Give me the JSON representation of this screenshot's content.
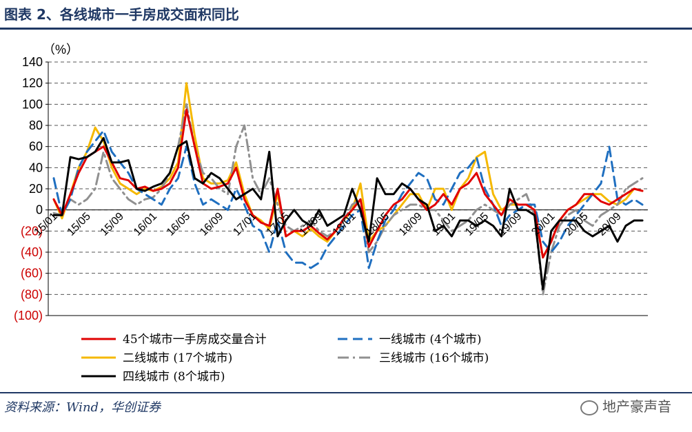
{
  "figure": {
    "title": "图表 2、各线城市一手房成交面积同比",
    "source": "资料来源：Wind，华创证券",
    "watermark": "地产豪声音"
  },
  "chart_data": {
    "type": "line",
    "title": "图表 2、各线城市一手房成交面积同比",
    "ylabel": "（%）",
    "xlabel": "",
    "ylim": [
      -100,
      140
    ],
    "yticks": [
      140,
      120,
      100,
      80,
      60,
      40,
      20,
      0,
      -20,
      -40,
      -60,
      -80,
      -100
    ],
    "ytick_labels": [
      "140",
      "120",
      "100",
      "80",
      "60",
      "40",
      "20",
      "0",
      "(20)",
      "(40)",
      "(60)",
      "(80)",
      "(100)"
    ],
    "negative_label_color": "#cc0000",
    "grid": true,
    "x_ticks": [
      "15/01",
      "15/05",
      "15/09",
      "16/01",
      "16/05",
      "16/09",
      "17/01",
      "17/05",
      "17/09",
      "18/01",
      "18/05",
      "18/09",
      "19/01",
      "19/05",
      "19/09",
      "20/01",
      "20/05",
      "20/09"
    ],
    "x_tick_index": [
      0,
      4,
      8,
      12,
      16,
      20,
      24,
      28,
      32,
      36,
      40,
      44,
      48,
      52,
      56,
      60,
      64,
      68
    ],
    "x_count": 72,
    "legend_position": "bottom",
    "series": [
      {
        "name": "45个城市一手房成交量合计",
        "color": "#e00000",
        "dash": "",
        "width": 3,
        "values": [
          10,
          -5,
          15,
          35,
          50,
          55,
          60,
          45,
          30,
          28,
          20,
          22,
          18,
          20,
          25,
          40,
          95,
          60,
          25,
          20,
          22,
          25,
          40,
          10,
          -5,
          -12,
          -15,
          20,
          -25,
          -20,
          -20,
          -15,
          -22,
          -28,
          -20,
          -8,
          0,
          10,
          -35,
          -20,
          -5,
          5,
          10,
          20,
          10,
          0,
          5,
          15,
          5,
          20,
          25,
          35,
          15,
          5,
          -5,
          10,
          5,
          5,
          0,
          -45,
          -30,
          -10,
          0,
          5,
          15,
          15,
          8,
          5,
          10,
          15,
          20,
          18
        ]
      },
      {
        "name": "一线城市 (4个城市)",
        "color": "#1f6fc0",
        "dash": "14,8",
        "width": 3,
        "values": [
          30,
          -5,
          10,
          40,
          55,
          65,
          75,
          55,
          45,
          35,
          20,
          15,
          10,
          5,
          20,
          30,
          60,
          25,
          5,
          10,
          5,
          0,
          20,
          5,
          -15,
          -20,
          -40,
          -10,
          -40,
          -50,
          -50,
          -55,
          -50,
          -35,
          -25,
          -15,
          -5,
          0,
          -55,
          -30,
          -10,
          0,
          15,
          25,
          35,
          30,
          10,
          5,
          20,
          35,
          40,
          50,
          20,
          5,
          -15,
          -5,
          0,
          5,
          5,
          -30,
          -40,
          -30,
          -15,
          -5,
          5,
          15,
          25,
          60,
          10,
          5,
          10,
          5
        ]
      },
      {
        "name": "二线城市 (17个城市)",
        "color": "#f5b800",
        "dash": "",
        "width": 3,
        "values": [
          10,
          -8,
          15,
          40,
          55,
          78,
          65,
          40,
          25,
          20,
          15,
          20,
          18,
          22,
          30,
          45,
          120,
          70,
          30,
          25,
          25,
          28,
          45,
          15,
          -5,
          -10,
          -18,
          15,
          -25,
          -20,
          -25,
          -18,
          -25,
          -30,
          -20,
          -10,
          0,
          25,
          -30,
          -20,
          -15,
          -5,
          5,
          15,
          15,
          0,
          20,
          20,
          0,
          20,
          30,
          50,
          55,
          15,
          0,
          5,
          5,
          5,
          0,
          -45,
          -30,
          -10,
          0,
          5,
          10,
          15,
          15,
          8,
          5,
          10,
          20,
          18
        ]
      },
      {
        "name": "三线城市 (16个城市)",
        "color": "#909090",
        "dash": "16,6,3,6",
        "width": 3,
        "values": [
          -3,
          -5,
          10,
          5,
          10,
          20,
          55,
          30,
          20,
          10,
          5,
          10,
          12,
          20,
          35,
          60,
          100,
          60,
          35,
          30,
          20,
          15,
          60,
          80,
          30,
          15,
          30,
          5,
          -15,
          -20,
          -15,
          -10,
          -20,
          -25,
          -20,
          -10,
          5,
          10,
          -40,
          -30,
          -15,
          -5,
          0,
          5,
          5,
          0,
          0,
          -10,
          -20,
          -15,
          -10,
          0,
          5,
          0,
          -5,
          5,
          10,
          15,
          -5,
          -80,
          -40,
          -15,
          -5,
          0,
          -10,
          -15,
          -5,
          0,
          5,
          20,
          25,
          30
        ]
      },
      {
        "name": "四线城市 (8个城市)",
        "color": "#000000",
        "dash": "",
        "width": 3,
        "values": [
          -5,
          -5,
          50,
          48,
          50,
          55,
          68,
          45,
          45,
          47,
          20,
          18,
          22,
          25,
          35,
          60,
          65,
          30,
          25,
          35,
          30,
          20,
          10,
          15,
          20,
          10,
          55,
          -25,
          -10,
          0,
          -10,
          -15,
          0,
          -15,
          -10,
          -5,
          20,
          0,
          -30,
          30,
          15,
          15,
          25,
          20,
          10,
          5,
          -20,
          -15,
          -25,
          -10,
          -10,
          -15,
          -10,
          -15,
          -25,
          20,
          0,
          0,
          -5,
          -75,
          -20,
          -10,
          -10,
          -10,
          -20,
          -25,
          -20,
          -15,
          -30,
          -15,
          -10,
          -10
        ]
      }
    ]
  }
}
